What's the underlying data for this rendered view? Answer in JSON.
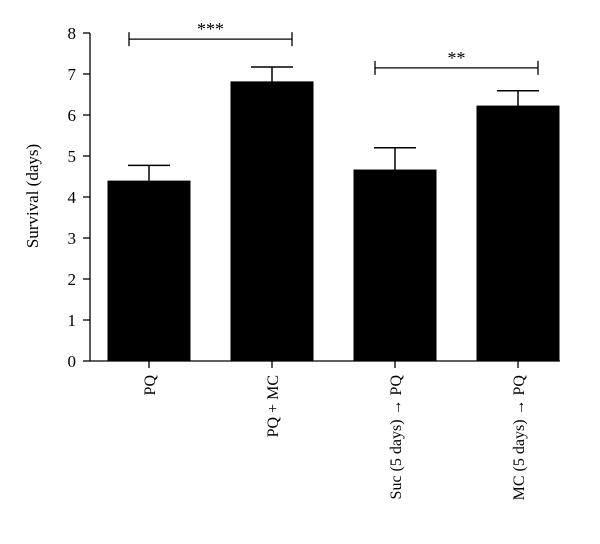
{
  "chart_data": {
    "type": "bar",
    "title": "",
    "xlabel": "",
    "ylabel": "Survival (days)",
    "ylim": [
      0,
      8
    ],
    "yticks": [
      0,
      1,
      2,
      3,
      4,
      5,
      6,
      7,
      8
    ],
    "grid": false,
    "categories": [
      "PQ",
      "PQ + MC",
      "Suc (5 days) → PQ",
      "MC (5 days) → PQ"
    ],
    "values": [
      4.4,
      6.82,
      4.67,
      6.23
    ],
    "error_upper": [
      4.77,
      7.17,
      5.2,
      6.59
    ],
    "bar_color": "#000000",
    "significance": [
      {
        "from": 0,
        "to": 1,
        "label": "***",
        "y": 7.85
      },
      {
        "from": 2,
        "to": 3,
        "label": "**",
        "y": 7.15
      }
    ]
  }
}
